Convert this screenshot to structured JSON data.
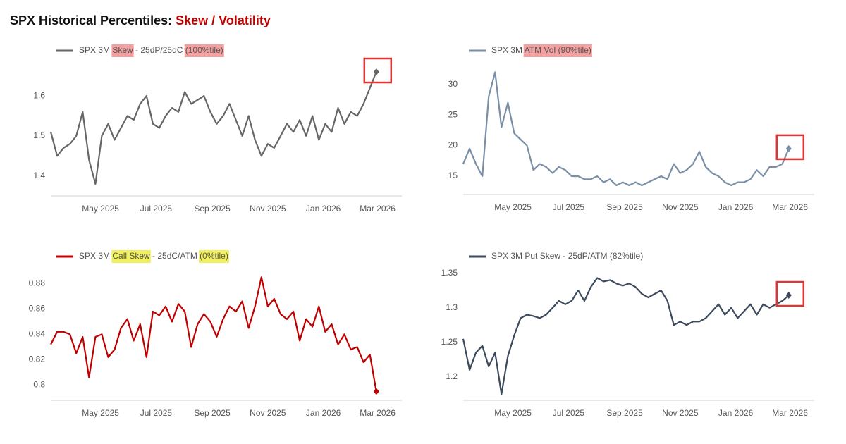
{
  "title": {
    "text": "SPX Historical Percentiles:",
    "accent": "Skew / Volatility"
  },
  "chart_data": [
    {
      "type": "line",
      "xlim": [
        0,
        55
      ],
      "xticks": [
        {
          "value": 7.8,
          "label": "May 2025"
        },
        {
          "value": 16.5,
          "label": "Jul 2025"
        },
        {
          "value": 25.3,
          "label": "Sep 2025"
        },
        {
          "value": 34.0,
          "label": "Nov 2025"
        },
        {
          "value": 42.7,
          "label": "Jan 2026"
        },
        {
          "value": 51.2,
          "label": "Mar 2026"
        }
      ],
      "ylim": [
        1.35,
        1.69
      ],
      "yticks": [
        1.4,
        1.5,
        1.6
      ],
      "highlight_last": true,
      "series": [
        {
          "name": "SPX 3M Skew - 25dP/25dC (100%tile)",
          "color": "#666666",
          "highlight": [
            "Skew",
            "(100%tile)"
          ],
          "highlight_color": "#f4a0a0",
          "values": [
            1.51,
            1.45,
            1.47,
            1.48,
            1.5,
            1.56,
            1.44,
            1.38,
            1.5,
            1.53,
            1.49,
            1.52,
            1.55,
            1.54,
            1.58,
            1.6,
            1.53,
            1.52,
            1.55,
            1.57,
            1.56,
            1.61,
            1.58,
            1.59,
            1.6,
            1.56,
            1.53,
            1.55,
            1.58,
            1.54,
            1.5,
            1.55,
            1.49,
            1.45,
            1.48,
            1.47,
            1.5,
            1.53,
            1.51,
            1.54,
            1.5,
            1.55,
            1.49,
            1.53,
            1.51,
            1.57,
            1.53,
            1.56,
            1.55,
            1.58,
            1.62,
            1.66
          ]
        }
      ]
    },
    {
      "type": "line",
      "xlim": [
        0,
        55
      ],
      "xticks": [
        {
          "value": 7.8,
          "label": "May 2025"
        },
        {
          "value": 16.5,
          "label": "Jul 2025"
        },
        {
          "value": 25.3,
          "label": "Sep 2025"
        },
        {
          "value": 34.0,
          "label": "Nov 2025"
        },
        {
          "value": 42.7,
          "label": "Jan 2026"
        },
        {
          "value": 51.2,
          "label": "Mar 2026"
        }
      ],
      "ylim": [
        12,
        34
      ],
      "yticks": [
        15,
        20,
        25,
        30
      ],
      "highlight_last": true,
      "series": [
        {
          "name": "SPX 3M ATM Vol (90%tile)",
          "color": "#7a8fa6",
          "highlight": [
            "ATM Vol (90%tile)"
          ],
          "highlight_color": "#f4a0a0",
          "values": [
            17,
            19.5,
            17,
            15,
            28,
            32,
            23,
            27,
            22,
            21,
            20,
            16,
            17,
            16.5,
            15.5,
            16.5,
            16,
            15,
            15,
            14.5,
            14.5,
            15,
            14,
            14.5,
            13.5,
            14,
            13.5,
            14,
            13.5,
            14,
            14.5,
            15,
            14.5,
            17,
            15.5,
            16,
            17,
            19,
            16.5,
            15.5,
            15,
            14,
            13.5,
            14,
            14,
            14.5,
            16,
            15,
            16.5,
            16.5,
            17,
            19.5
          ]
        }
      ]
    },
    {
      "type": "line",
      "xlim": [
        0,
        55
      ],
      "xticks": [
        {
          "value": 7.8,
          "label": "May 2025"
        },
        {
          "value": 16.5,
          "label": "Jul 2025"
        },
        {
          "value": 25.3,
          "label": "Sep 2025"
        },
        {
          "value": 34.0,
          "label": "Nov 2025"
        },
        {
          "value": 42.7,
          "label": "Jan 2026"
        },
        {
          "value": 51.2,
          "label": "Mar 2026"
        }
      ],
      "ylim": [
        0.788,
        0.898
      ],
      "yticks": [
        0.8,
        0.82,
        0.84,
        0.86,
        0.88
      ],
      "highlight_last": false,
      "series": [
        {
          "name": "SPX 3M Call Skew - 25dC/ATM (0%tile)",
          "color": "#c00000",
          "highlight": [
            "Call Skew",
            "(0%tile)"
          ],
          "highlight_color": "#f0f060",
          "values": [
            0.832,
            0.842,
            0.842,
            0.84,
            0.825,
            0.838,
            0.806,
            0.838,
            0.84,
            0.822,
            0.828,
            0.845,
            0.852,
            0.835,
            0.848,
            0.822,
            0.858,
            0.855,
            0.862,
            0.85,
            0.864,
            0.858,
            0.83,
            0.848,
            0.856,
            0.85,
            0.838,
            0.852,
            0.862,
            0.858,
            0.866,
            0.845,
            0.862,
            0.885,
            0.862,
            0.868,
            0.856,
            0.852,
            0.858,
            0.835,
            0.852,
            0.846,
            0.862,
            0.842,
            0.848,
            0.832,
            0.84,
            0.828,
            0.83,
            0.818,
            0.824,
            0.795
          ]
        }
      ]
    },
    {
      "type": "line",
      "xlim": [
        0,
        55
      ],
      "xticks": [
        {
          "value": 7.8,
          "label": "May 2025"
        },
        {
          "value": 16.5,
          "label": "Jul 2025"
        },
        {
          "value": 25.3,
          "label": "Sep 2025"
        },
        {
          "value": 34.0,
          "label": "Nov 2025"
        },
        {
          "value": 42.7,
          "label": "Jan 2026"
        },
        {
          "value": 51.2,
          "label": "Mar 2026"
        }
      ],
      "ylim": [
        1.166,
        1.368
      ],
      "yticks": [
        1.2,
        1.25,
        1.3,
        1.35
      ],
      "highlight_last": true,
      "series": [
        {
          "name": "SPX 3M Put Skew - 25dP/ATM (82%tile)",
          "color": "#3c4a5c",
          "values": [
            1.255,
            1.21,
            1.235,
            1.245,
            1.215,
            1.235,
            1.175,
            1.23,
            1.26,
            1.285,
            1.29,
            1.288,
            1.285,
            1.29,
            1.3,
            1.31,
            1.305,
            1.31,
            1.325,
            1.31,
            1.33,
            1.343,
            1.338,
            1.34,
            1.335,
            1.332,
            1.335,
            1.33,
            1.32,
            1.315,
            1.32,
            1.325,
            1.31,
            1.275,
            1.28,
            1.275,
            1.28,
            1.28,
            1.285,
            1.295,
            1.305,
            1.29,
            1.3,
            1.285,
            1.295,
            1.305,
            1.29,
            1.305,
            1.3,
            1.305,
            1.31,
            1.318
          ]
        }
      ]
    }
  ]
}
